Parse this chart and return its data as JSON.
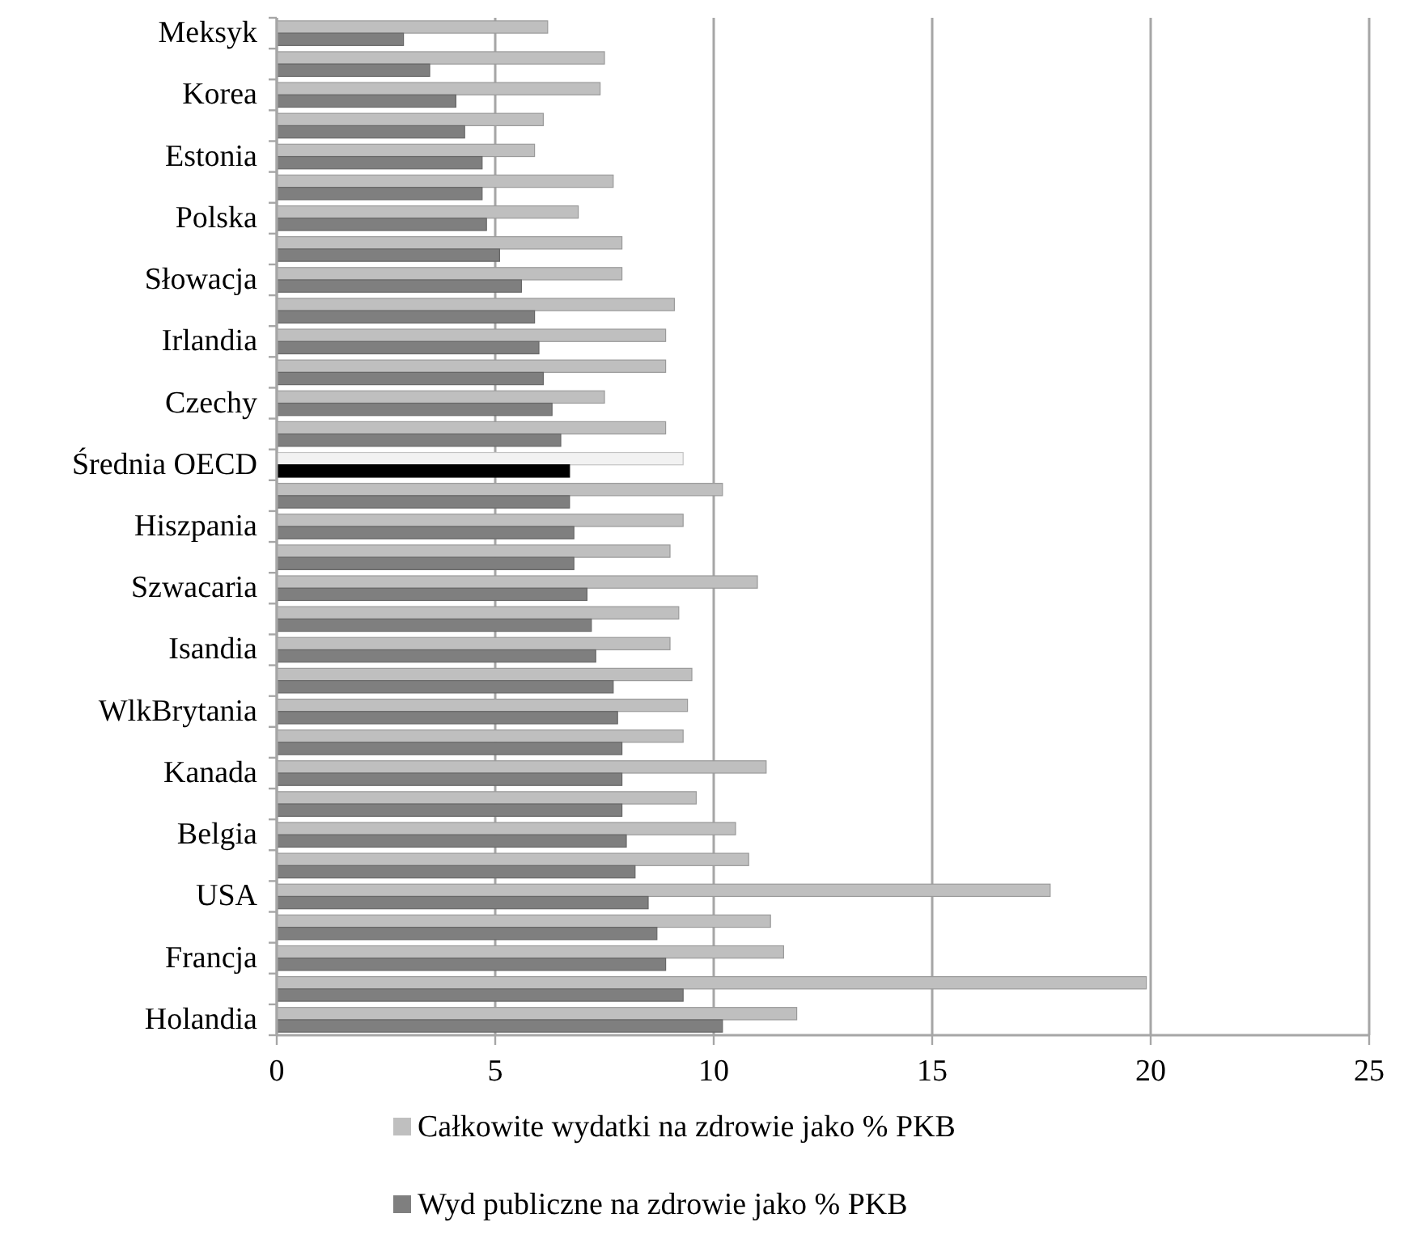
{
  "chart_data": {
    "type": "bar",
    "orientation": "horizontal",
    "categories": [
      "Meksyk",
      null,
      "Korea",
      null,
      "Estonia",
      null,
      "Polska",
      null,
      "Słowacja",
      null,
      "Irlandia",
      null,
      "Czechy",
      null,
      "Średnia OECD",
      null,
      "Hiszpania",
      null,
      "Szwacaria",
      null,
      "Isandia",
      null,
      "WlkBrytania",
      null,
      "Kanada",
      null,
      "Belgia",
      null,
      "USA",
      null,
      "Francja",
      null,
      "Holandia"
    ],
    "series": [
      {
        "name": "Całkowite wydatki na zdrowie jako % PKB",
        "color": "#bfbfbf",
        "colors": [
          "#bfbfbf",
          "#bfbfbf",
          "#bfbfbf",
          "#bfbfbf",
          "#bfbfbf",
          "#bfbfbf",
          "#bfbfbf",
          "#bfbfbf",
          "#bfbfbf",
          "#bfbfbf",
          "#bfbfbf",
          "#bfbfbf",
          "#bfbfbf",
          "#bfbfbf",
          "#f2f2f2",
          "#bfbfbf",
          "#bfbfbf",
          "#bfbfbf",
          "#bfbfbf",
          "#bfbfbf",
          "#bfbfbf",
          "#bfbfbf",
          "#bfbfbf",
          "#bfbfbf",
          "#bfbfbf",
          "#bfbfbf",
          "#bfbfbf",
          "#bfbfbf",
          "#bfbfbf",
          "#bfbfbf",
          "#bfbfbf",
          "#bfbfbf",
          "#bfbfbf"
        ],
        "values": [
          6.2,
          7.5,
          7.4,
          6.1,
          5.9,
          7.7,
          6.9,
          7.9,
          7.9,
          9.1,
          8.9,
          8.9,
          7.5,
          8.9,
          9.3,
          10.2,
          9.3,
          9.0,
          11.0,
          9.2,
          9.0,
          9.5,
          9.4,
          9.3,
          11.2,
          9.6,
          10.5,
          10.8,
          17.7,
          11.3,
          11.6,
          19.9,
          11.9
        ]
      },
      {
        "name": "Wyd publiczne na zdrowie jako % PKB",
        "color": "#7f7f7f",
        "colors": [
          "#7f7f7f",
          "#7f7f7f",
          "#7f7f7f",
          "#7f7f7f",
          "#7f7f7f",
          "#7f7f7f",
          "#7f7f7f",
          "#7f7f7f",
          "#7f7f7f",
          "#7f7f7f",
          "#7f7f7f",
          "#7f7f7f",
          "#7f7f7f",
          "#7f7f7f",
          "#000000",
          "#7f7f7f",
          "#7f7f7f",
          "#7f7f7f",
          "#7f7f7f",
          "#7f7f7f",
          "#7f7f7f",
          "#7f7f7f",
          "#7f7f7f",
          "#7f7f7f",
          "#7f7f7f",
          "#7f7f7f",
          "#7f7f7f",
          "#7f7f7f",
          "#7f7f7f",
          "#7f7f7f",
          "#7f7f7f",
          "#7f7f7f",
          "#7f7f7f"
        ],
        "values": [
          2.9,
          3.5,
          4.1,
          4.3,
          4.7,
          4.7,
          4.8,
          5.1,
          5.6,
          5.9,
          6.0,
          6.1,
          6.3,
          6.5,
          6.7,
          6.7,
          6.8,
          6.8,
          7.1,
          7.2,
          7.3,
          7.7,
          7.8,
          7.9,
          7.9,
          7.9,
          8.0,
          8.2,
          8.5,
          8.7,
          8.9,
          9.3,
          10.2
        ]
      }
    ],
    "xlim": [
      0,
      25
    ],
    "xticks": [
      0,
      5,
      10,
      15,
      20,
      25
    ],
    "grid": "x",
    "legend": "bottom"
  }
}
